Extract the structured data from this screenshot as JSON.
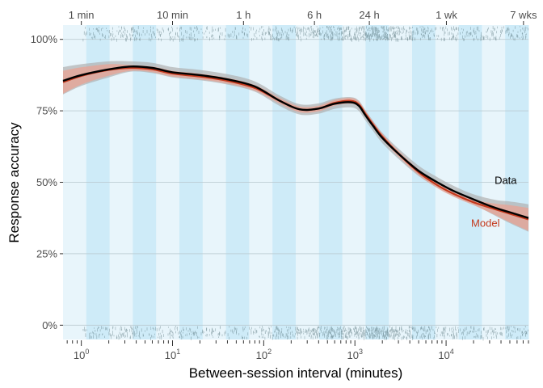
{
  "chart_data": {
    "type": "line",
    "xlabel": "Between-session interval (minutes)",
    "ylabel": "Response accuracy",
    "x_scale": "log10",
    "xlim": [
      0.63,
      80000
    ],
    "ylim": [
      -0.05,
      1.05
    ],
    "grid": true,
    "y_ticks": [
      {
        "value": 0,
        "label": "0%"
      },
      {
        "value": 0.25,
        "label": "25%"
      },
      {
        "value": 0.5,
        "label": "50%"
      },
      {
        "value": 0.75,
        "label": "75%"
      },
      {
        "value": 1.0,
        "label": "100%"
      }
    ],
    "x_ticks": [
      {
        "value": 1,
        "base": "10",
        "exp": "0"
      },
      {
        "value": 10,
        "base": "10",
        "exp": "1"
      },
      {
        "value": 100,
        "base": "10",
        "exp": "2"
      },
      {
        "value": 1000,
        "base": "10",
        "exp": "3"
      },
      {
        "value": 10000,
        "base": "10",
        "exp": "4"
      }
    ],
    "top_ticks": [
      {
        "value": 1,
        "label": "1 min"
      },
      {
        "value": 10,
        "label": "10 min"
      },
      {
        "value": 60,
        "label": "1 h"
      },
      {
        "value": 360,
        "label": "6 h"
      },
      {
        "value": 1440,
        "label": "24 h"
      },
      {
        "value": 10080,
        "label": "1 wk"
      },
      {
        "value": 70560,
        "label": "7 wks"
      }
    ],
    "series": [
      {
        "name": "Data",
        "color": "#000000",
        "band_color": "#b0b0b0",
        "x": [
          0.63,
          1,
          2,
          3.5,
          6,
          10,
          20,
          40,
          80,
          150,
          250,
          400,
          600,
          900,
          1100,
          1300,
          1600,
          2000,
          3000,
          5000,
          8000,
          12000,
          20000,
          35000,
          50000,
          80000
        ],
        "y": [
          0.855,
          0.875,
          0.895,
          0.905,
          0.9,
          0.885,
          0.875,
          0.86,
          0.835,
          0.785,
          0.755,
          0.758,
          0.775,
          0.78,
          0.768,
          0.735,
          0.695,
          0.655,
          0.6,
          0.54,
          0.5,
          0.47,
          0.44,
          0.41,
          0.395,
          0.375
        ]
      },
      {
        "name": "Model",
        "color": "#c4391d",
        "band_color": "#e8a293",
        "x": [
          0.63,
          1,
          2,
          3.5,
          6,
          10,
          20,
          40,
          80,
          150,
          250,
          400,
          600,
          900,
          1100,
          1300,
          1600,
          2000,
          3000,
          5000,
          8000,
          12000,
          20000,
          35000,
          50000,
          80000
        ],
        "y": [
          0.85,
          0.872,
          0.893,
          0.9,
          0.895,
          0.88,
          0.87,
          0.855,
          0.83,
          0.785,
          0.755,
          0.758,
          0.778,
          0.785,
          0.773,
          0.74,
          0.7,
          0.66,
          0.6,
          0.535,
          0.49,
          0.46,
          0.43,
          0.405,
          0.39,
          0.37
        ]
      }
    ],
    "labels": [
      {
        "text": "Data",
        "x": 45000,
        "y": 0.495,
        "color": "#000000"
      },
      {
        "text": "Model",
        "x": 27000,
        "y": 0.345,
        "color": "#c4391d"
      }
    ],
    "band_colors": [
      "#e8f5fb",
      "#ceebf8"
    ],
    "rug_color": "#4f6b73"
  }
}
